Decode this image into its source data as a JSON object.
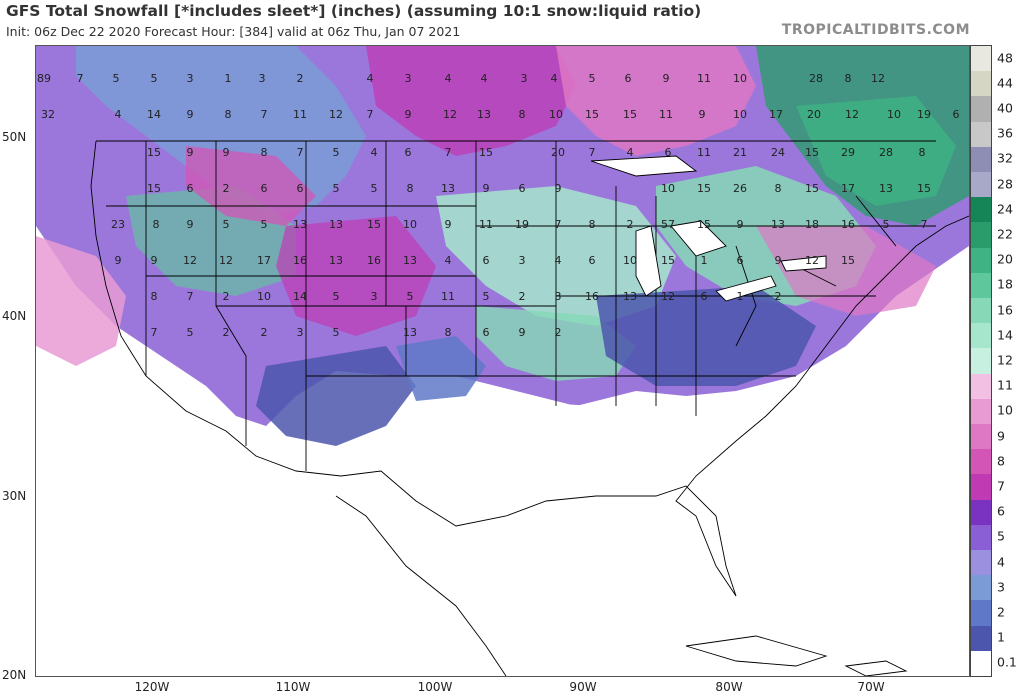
{
  "header": {
    "title": "GFS Total Snowfall [*includes sleet*] (inches) (assuming 10:1 snow:liquid ratio)",
    "subtitle": "Init: 06z Dec 22 2020   Forecast Hour: [384]   valid at 06z Thu, Jan 07 2021",
    "credit": "TROPICALTIDBITS.COM"
  },
  "axes": {
    "lat_labels": [
      "50N",
      "40N",
      "30N",
      "20N"
    ],
    "lon_labels": [
      "120W",
      "110W",
      "100W",
      "90W",
      "80W",
      "70W"
    ]
  },
  "legend": {
    "levels": [
      "0.1",
      "1",
      "2",
      "3",
      "4",
      "5",
      "6",
      "7",
      "8",
      "9",
      "10",
      "11",
      "12",
      "14",
      "16",
      "18",
      "20",
      "22",
      "24",
      "28",
      "32",
      "36",
      "40",
      "44",
      "48"
    ],
    "colors": [
      "#ffffff",
      "#4c56ad",
      "#5f79c8",
      "#7a9bd6",
      "#9b8fe0",
      "#8a5fd6",
      "#7a32c0",
      "#c03ab4",
      "#d356b6",
      "#de77c4",
      "#e89bd3",
      "#f2c0e2",
      "#c8f0e0",
      "#a6e6cc",
      "#86d8b6",
      "#5fc79c",
      "#3fb383",
      "#2a9c6c",
      "#158456",
      "#a8a8c8",
      "#8e8eb4",
      "#c8c8c8",
      "#b0b0b0",
      "#d6d6c4",
      "#e8e8e0"
    ]
  },
  "map_labels": {
    "values": [
      "89",
      "7",
      "5",
      "5",
      "3",
      "1",
      "3",
      "2",
      "4",
      "3",
      "4",
      "4",
      "3",
      "4",
      "5",
      "6",
      "9",
      "11",
      "10",
      "28",
      "8",
      "12",
      "32",
      "4",
      "14",
      "9",
      "8",
      "7",
      "11",
      "12",
      "7",
      "9",
      "12",
      "13",
      "8",
      "10",
      "15",
      "15",
      "11",
      "9",
      "10",
      "17",
      "20",
      "12",
      "10",
      "19",
      "6",
      "15",
      "9",
      "9",
      "8",
      "7",
      "5",
      "4",
      "6",
      "7",
      "15",
      "20",
      "7",
      "4",
      "6",
      "11",
      "21",
      "24",
      "15",
      "29",
      "28",
      "8",
      "15",
      "6",
      "2",
      "6",
      "6",
      "5",
      "5",
      "8",
      "13",
      "9",
      "6",
      "9",
      "10",
      "15",
      "26",
      "8",
      "15",
      "17",
      "13",
      "15",
      "23",
      "8",
      "9",
      "5",
      "5",
      "13",
      "13",
      "15",
      "10",
      "9",
      "11",
      "19",
      "7",
      "8",
      "2",
      "57",
      "15",
      "9",
      "13",
      "18",
      "16",
      "5",
      "7",
      "9",
      "9",
      "12",
      "12",
      "17",
      "16",
      "13",
      "16",
      "13",
      "4",
      "6",
      "3",
      "4",
      "6",
      "10",
      "15",
      "1",
      "6",
      "9",
      "12",
      "15",
      "8",
      "7",
      "2",
      "10",
      "14",
      "5",
      "3",
      "5",
      "11",
      "5",
      "2",
      "3",
      "16",
      "13",
      "12",
      "6",
      "1",
      "2",
      "7",
      "5",
      "2",
      "2",
      "3",
      "5",
      "13",
      "8",
      "6",
      "9",
      "2"
    ]
  }
}
